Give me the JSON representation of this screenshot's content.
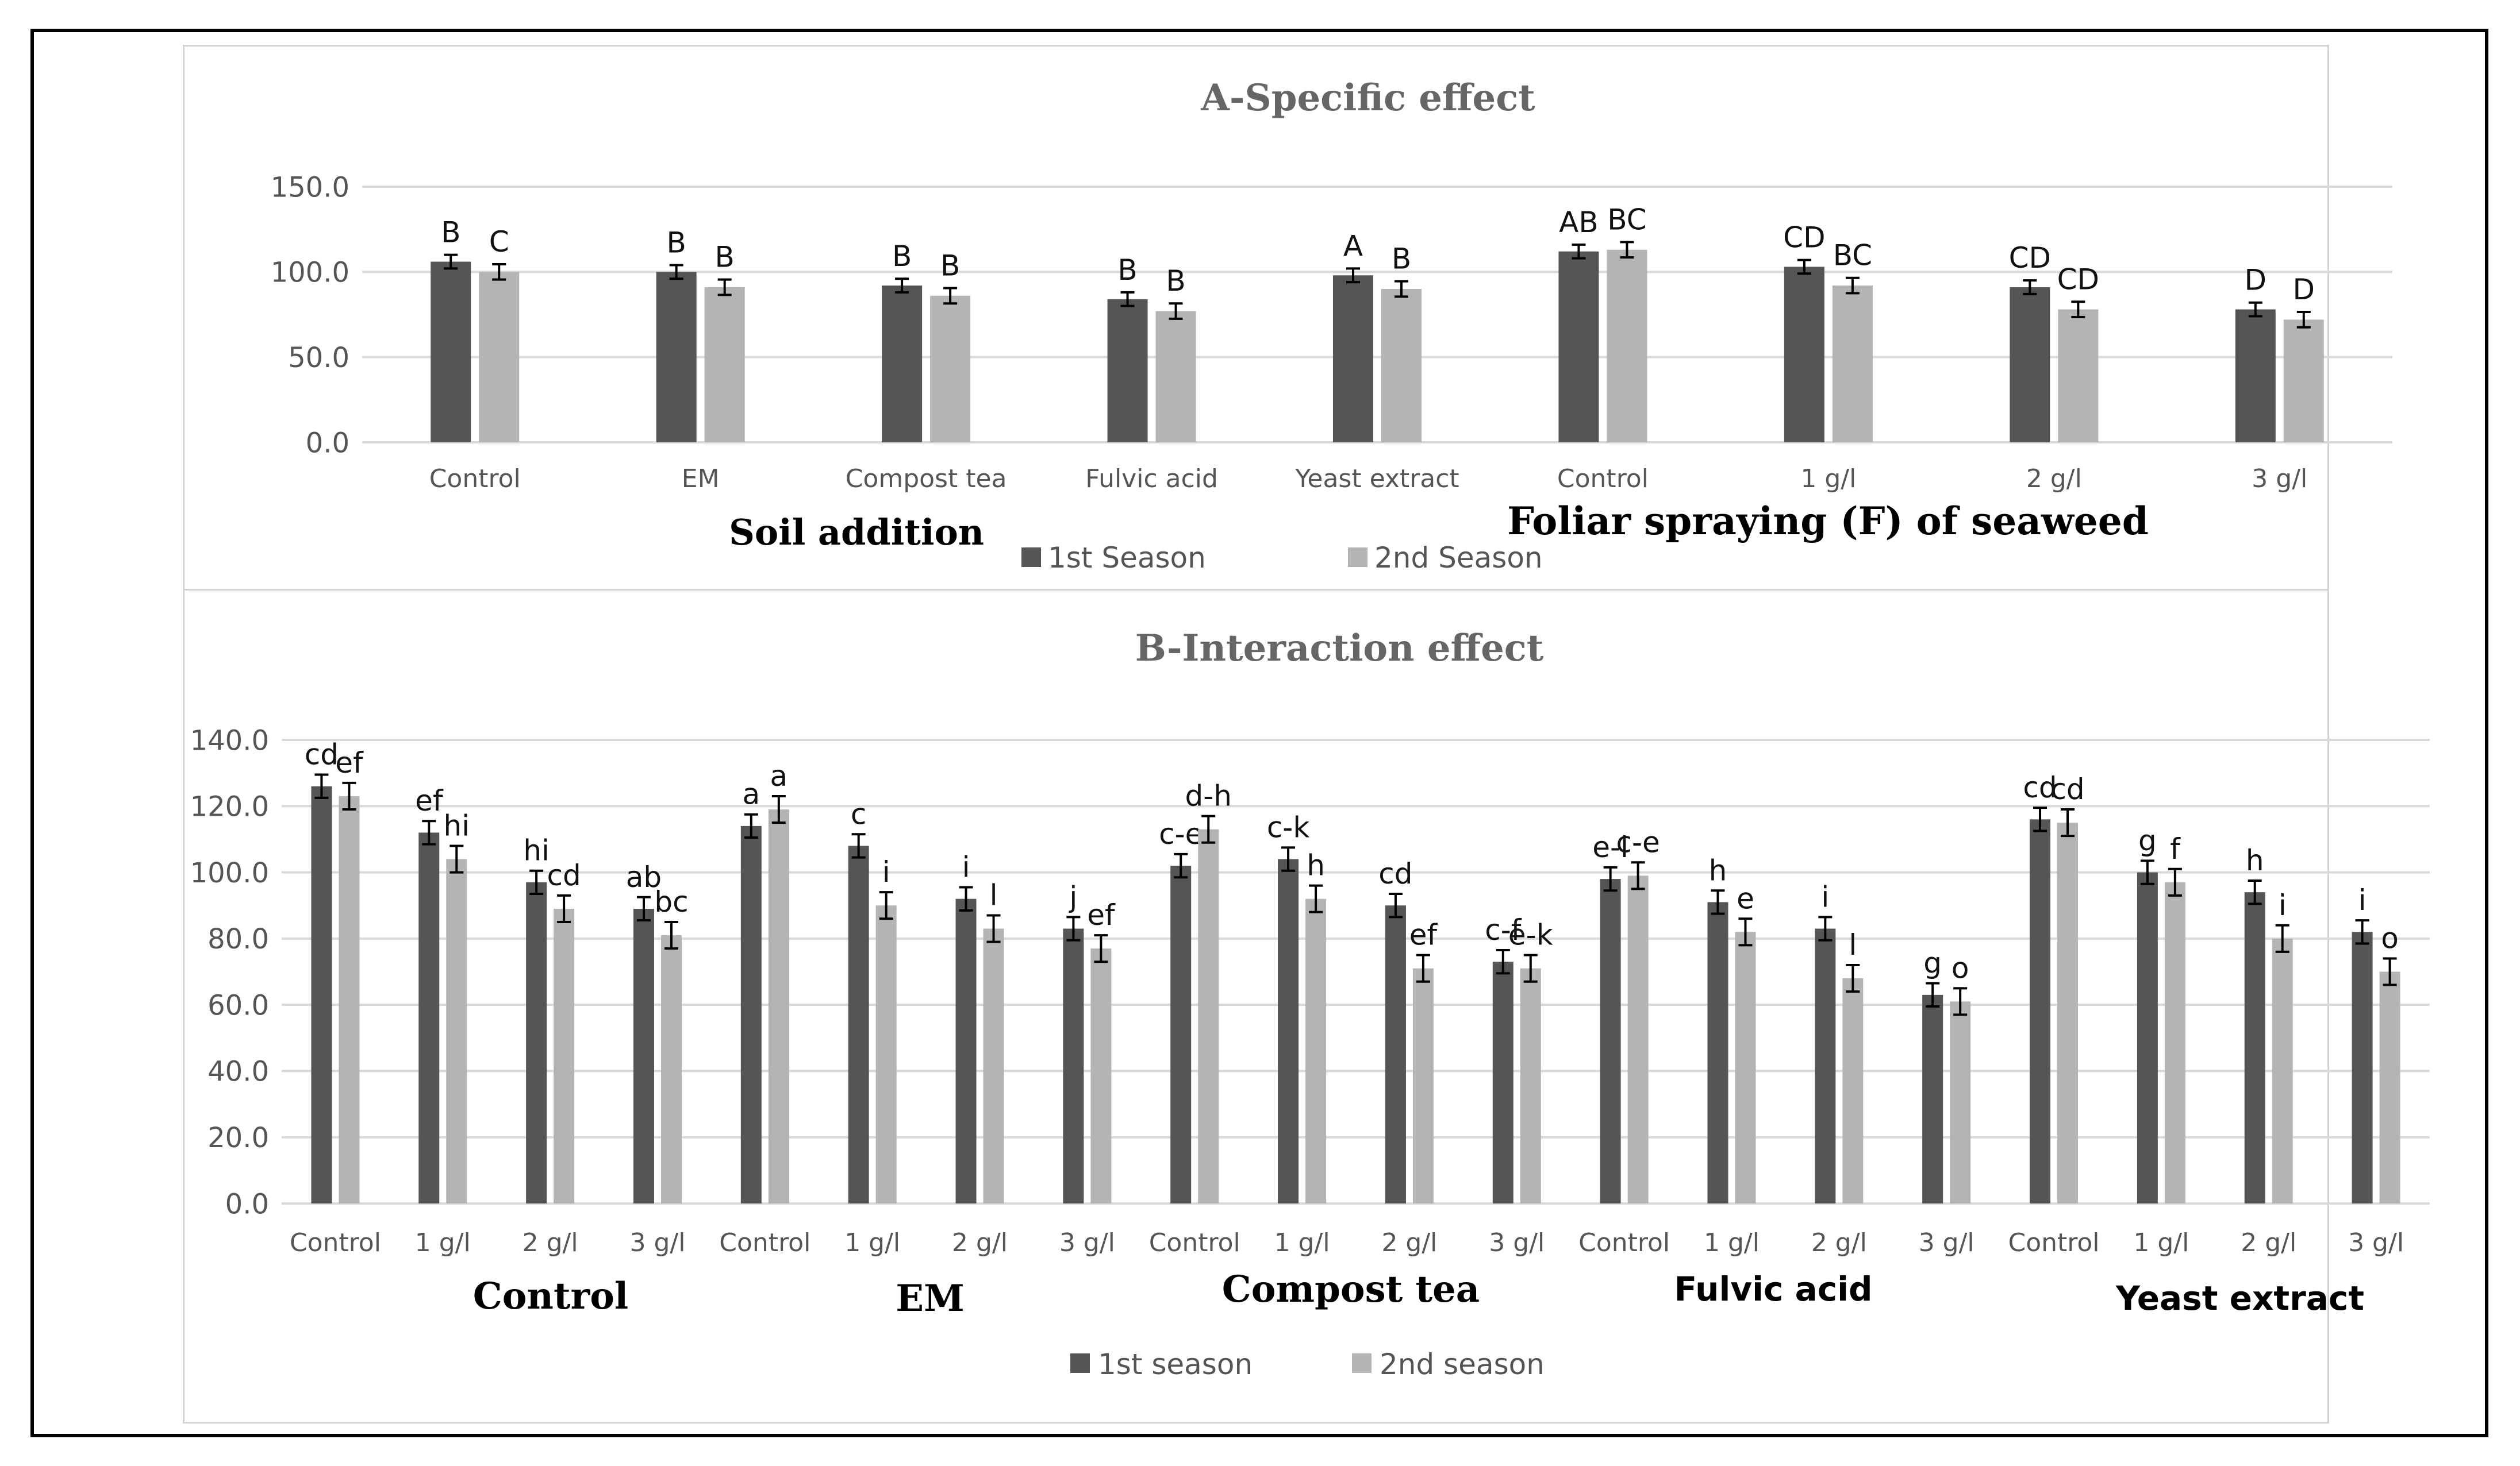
{
  "colors": {
    "series1": "#555555",
    "series2": "#b4b4b4",
    "grid": "#d9d9d9",
    "axis_text": "#595959"
  },
  "chart_data": [
    {
      "type": "bar",
      "title": "A-Specific effect",
      "categories": [
        "Control",
        "EM",
        "Compost tea",
        "Fulvic acid",
        "Yeast extract",
        "Control",
        "1 g/l",
        "2 g/l",
        "3 g/l"
      ],
      "group_labels": [
        "Soil addition",
        "Foliar spraying (F) of seaweed"
      ],
      "y_ticks": [
        "0.0",
        "50.0",
        "100.0",
        "150.0"
      ],
      "ylim": [
        0,
        150
      ],
      "series": [
        {
          "name": "1st Season",
          "values": [
            106,
            100,
            92,
            84,
            98,
            112,
            103,
            91,
            78
          ],
          "errors": [
            4,
            4,
            4,
            4,
            4,
            4,
            4,
            4,
            4
          ],
          "letters": [
            "B",
            "B",
            "B",
            "B",
            "A",
            "AB",
            "CD",
            "CD",
            "D"
          ]
        },
        {
          "name": "2nd Season",
          "values": [
            100,
            91,
            86,
            77,
            90,
            113,
            92,
            78,
            72
          ],
          "errors": [
            4.5,
            4.5,
            4.5,
            4.5,
            4.5,
            4.5,
            4.5,
            4.5,
            4.5
          ],
          "letters": [
            "C",
            "B",
            "B",
            "B",
            "B",
            "BC",
            "BC",
            "CD",
            "D"
          ]
        }
      ]
    },
    {
      "type": "bar",
      "title": "B-Interaction effect",
      "categories": [
        "Control",
        "1 g/l",
        "2 g/l",
        "3 g/l",
        "Control",
        "1 g/l",
        "2 g/l",
        "3 g/l",
        "Control",
        "1 g/l",
        "2 g/l",
        "3 g/l",
        "Control",
        "1 g/l",
        "2 g/l",
        "3 g/l",
        "Control",
        "1 g/l",
        "2 g/l",
        "3 g/l"
      ],
      "group_labels": [
        "Control",
        "EM",
        "Compost tea",
        "Fulvic acid",
        "Yeast extract"
      ],
      "y_ticks": [
        "0.0",
        "20.0",
        "40.0",
        "60.0",
        "80.0",
        "100.0",
        "120.0",
        "140.0"
      ],
      "ylim": [
        0,
        140
      ],
      "series": [
        {
          "name": "1st season",
          "values": [
            126,
            112,
            97,
            89,
            114,
            108,
            92,
            83,
            102,
            104,
            90,
            73,
            98,
            91,
            83,
            63,
            116,
            100,
            94,
            82
          ],
          "errors": [
            3.5,
            3.5,
            3.5,
            3.5,
            3.5,
            3.5,
            3.5,
            3.5,
            3.5,
            3.5,
            3.5,
            3.5,
            3.5,
            3.5,
            3.5,
            3.5,
            3.5,
            3.5,
            3.5,
            3.5
          ],
          "letters": [
            "cd",
            "ef",
            "hi",
            "ab",
            "a",
            "c",
            "i",
            "j",
            "c-e",
            "c-k",
            "cd",
            "c-f",
            "e-l",
            "h",
            "i",
            "g",
            "cd",
            "g",
            "h",
            "i"
          ]
        },
        {
          "name": "2nd season",
          "values": [
            123,
            104,
            89,
            81,
            119,
            90,
            83,
            77,
            113,
            92,
            71,
            71,
            99,
            82,
            68,
            61,
            115,
            97,
            80,
            70
          ],
          "errors": [
            4,
            4,
            4,
            4,
            4,
            4,
            4,
            4,
            4,
            4,
            4,
            4,
            4,
            4,
            4,
            4,
            4,
            4,
            4,
            4
          ],
          "letters": [
            "ef",
            "hi",
            "cd",
            "bc",
            "a",
            "i",
            "l",
            "ef",
            "d-h",
            "h",
            "ef",
            "e-k",
            "c-e",
            "e",
            "l",
            "o",
            "cd",
            "f",
            "i",
            "o"
          ]
        }
      ]
    }
  ]
}
